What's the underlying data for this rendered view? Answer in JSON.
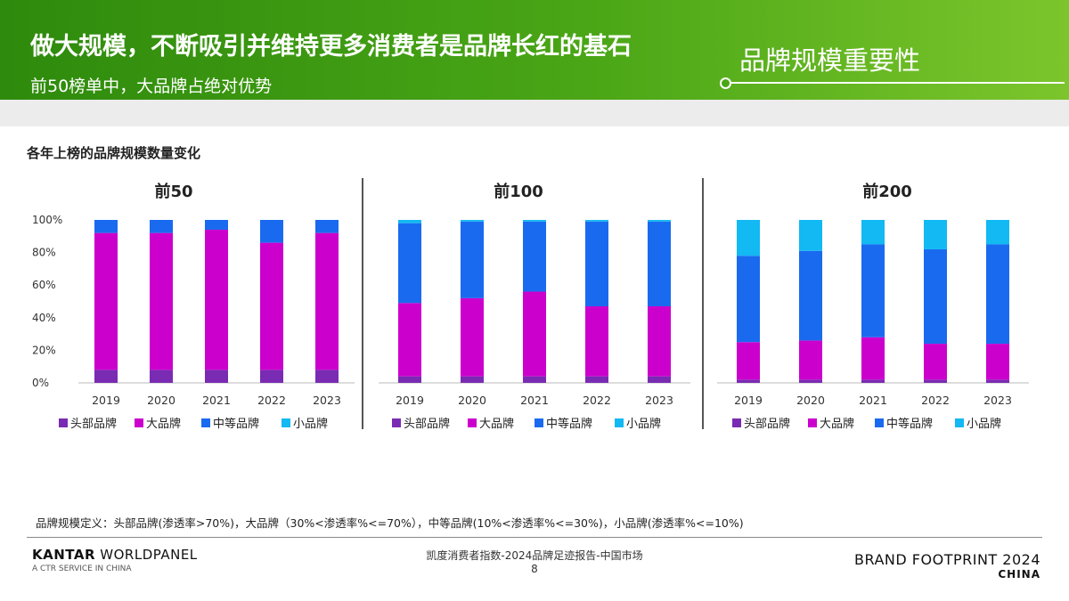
{
  "header": {
    "title": "做大规模，不断吸引并维持更多消费者是品牌长红的基石",
    "subtitle": "前50榜单中，大品牌占绝对优势",
    "section_tag": "品牌规模重要性"
  },
  "chart_heading": "各年上榜的品牌规模数量变化",
  "colors": {
    "头部品牌": "#7a2bb3",
    "大品牌": "#cc00cc",
    "中等品牌": "#1a6af0",
    "小品牌": "#12b9f3",
    "header_green": "#3f9c12"
  },
  "chart_data": [
    {
      "type": "bar",
      "stacked": true,
      "title": "前50",
      "categories": [
        "2019",
        "2020",
        "2021",
        "2022",
        "2023"
      ],
      "y_tick_labels": [
        "100%",
        "80%",
        "60%",
        "40%",
        "20%",
        "0%"
      ],
      "ylim": [
        0,
        100
      ],
      "series": [
        {
          "name": "头部品牌",
          "values": [
            8,
            8,
            8,
            8,
            8
          ]
        },
        {
          "name": "大品牌",
          "values": [
            84,
            84,
            86,
            78,
            84
          ]
        },
        {
          "name": "中等品牌",
          "values": [
            8,
            8,
            6,
            14,
            8
          ]
        },
        {
          "name": "小品牌",
          "values": [
            0,
            0,
            0,
            0,
            0
          ]
        }
      ],
      "legend": [
        "头部品牌",
        "大品牌",
        "中等品牌",
        "小品牌"
      ]
    },
    {
      "type": "bar",
      "stacked": true,
      "title": "前100",
      "categories": [
        "2019",
        "2020",
        "2021",
        "2022",
        "2023"
      ],
      "ylim": [
        0,
        100
      ],
      "series": [
        {
          "name": "头部品牌",
          "values": [
            4,
            4,
            4,
            4,
            4
          ]
        },
        {
          "name": "大品牌",
          "values": [
            45,
            48,
            52,
            43,
            43
          ]
        },
        {
          "name": "中等品牌",
          "values": [
            49,
            47,
            43,
            52,
            52
          ]
        },
        {
          "name": "小品牌",
          "values": [
            2,
            1,
            1,
            1,
            1
          ]
        }
      ],
      "legend": [
        "头部品牌",
        "大品牌",
        "中等品牌",
        "小品牌"
      ]
    },
    {
      "type": "bar",
      "stacked": true,
      "title": "前200",
      "categories": [
        "2019",
        "2020",
        "2021",
        "2022",
        "2023"
      ],
      "ylim": [
        0,
        100
      ],
      "series": [
        {
          "name": "头部品牌",
          "values": [
            2,
            2,
            2,
            2,
            2
          ]
        },
        {
          "name": "大品牌",
          "values": [
            23,
            24,
            26,
            22,
            22
          ]
        },
        {
          "name": "中等品牌",
          "values": [
            53,
            55,
            57,
            58,
            61
          ]
        },
        {
          "name": "小品牌",
          "values": [
            22,
            19,
            15,
            18,
            15
          ]
        }
      ],
      "legend": [
        "头部品牌",
        "大品牌",
        "中等品牌",
        "小品牌"
      ]
    }
  ],
  "footnote": "品牌规模定义：头部品牌(渗透率>70%)，大品牌（30%<渗透率%<=70%），中等品牌(10%<渗透率%<=30%)，小品牌(渗透率%<=10%)",
  "footer": {
    "left_brand_bold": "KANTAR",
    "left_brand_rest": " WORLDPANEL",
    "left_sub": "A CTR SERVICE IN CHINA",
    "center_line1": "凯度消费者指数-2024品牌足迹报告-中国市场",
    "page_number": "8",
    "right_brand": "BRAND FOOTPRINT 2024",
    "right_sub": "CHINA"
  }
}
